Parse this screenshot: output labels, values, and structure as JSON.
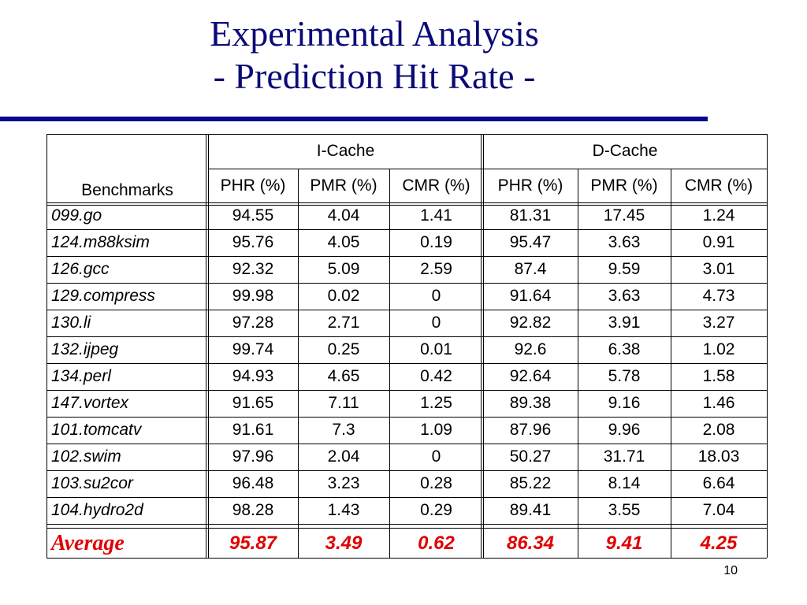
{
  "slide": {
    "title_line1": "Experimental Analysis",
    "title_line2": "- Prediction Hit Rate -",
    "page_number": "10"
  },
  "table": {
    "group_headers": [
      "I-Cache",
      "D-Cache"
    ],
    "row_header_label": "Benchmarks",
    "sub_headers": [
      "PHR (%)",
      "PMR (%)",
      "CMR (%)",
      "PHR (%)",
      "PMR (%)",
      "CMR (%)"
    ],
    "rows": [
      {
        "name": "099.go",
        "values": [
          "94.55",
          "4.04",
          "1.41",
          "81.31",
          "17.45",
          "1.24"
        ]
      },
      {
        "name": "124.m88ksim",
        "values": [
          "95.76",
          "4.05",
          "0.19",
          "95.47",
          "3.63",
          "0.91"
        ]
      },
      {
        "name": "126.gcc",
        "values": [
          "92.32",
          "5.09",
          "2.59",
          "87.4",
          "9.59",
          "3.01"
        ]
      },
      {
        "name": "129.compress",
        "values": [
          "99.98",
          "0.02",
          "0",
          "91.64",
          "3.63",
          "4.73"
        ]
      },
      {
        "name": "130.li",
        "values": [
          "97.28",
          "2.71",
          "0",
          "92.82",
          "3.91",
          "3.27"
        ]
      },
      {
        "name": "132.ijpeg",
        "values": [
          "99.74",
          "0.25",
          "0.01",
          "92.6",
          "6.38",
          "1.02"
        ]
      },
      {
        "name": "134.perl",
        "values": [
          "94.93",
          "4.65",
          "0.42",
          "92.64",
          "5.78",
          "1.58"
        ]
      },
      {
        "name": "147.vortex",
        "values": [
          "91.65",
          "7.11",
          "1.25",
          "89.38",
          "9.16",
          "1.46"
        ]
      },
      {
        "name": "101.tomcatv",
        "values": [
          "91.61",
          "7.3",
          "1.09",
          "87.96",
          "9.96",
          "2.08"
        ]
      },
      {
        "name": "102.swim",
        "values": [
          "97.96",
          "2.04",
          "0",
          "50.27",
          "31.71",
          "18.03"
        ]
      },
      {
        "name": "103.su2cor",
        "values": [
          "96.48",
          "3.23",
          "0.28",
          "85.22",
          "8.14",
          "6.64"
        ]
      },
      {
        "name": "104.hydro2d",
        "values": [
          "98.28",
          "1.43",
          "0.29",
          "89.41",
          "3.55",
          "7.04"
        ]
      }
    ],
    "average": {
      "name": "Average",
      "values": [
        "95.87",
        "3.49",
        "0.62",
        "86.34",
        "9.41",
        "4.25"
      ]
    }
  }
}
